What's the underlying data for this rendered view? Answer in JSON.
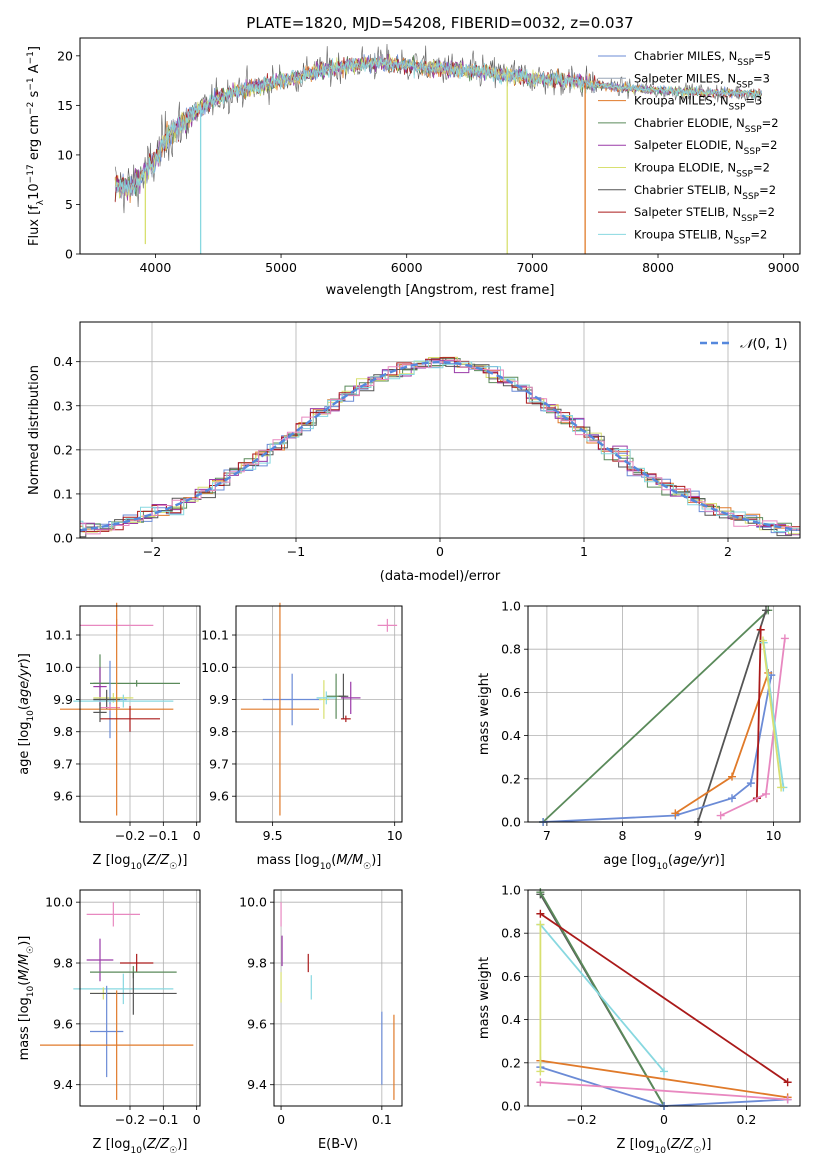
{
  "figure": {
    "title": "PLATE=1820, MJD=54208, FIBERID=0032, z=0.037"
  },
  "colors": {
    "MILES_Chabrier": "#6b8bd6",
    "MILES_Salpeter": "#9aa7b8",
    "MILES_Kroupa": "#e07a2a",
    "ELODIE_Chabrier": "#5a8a5a",
    "ELODIE_Salpeter": "#9a3aa8",
    "ELODIE_Kroupa": "#d8e070",
    "STELIB_Chabrier": "#555555",
    "STELIB_Salpeter": "#aa1a1a",
    "STELIB_Kroupa": "#88d8e0",
    "Salpeter_MILES_points": "#e888c0",
    "normal_curve": "#5588dd"
  },
  "chart_data": [
    {
      "id": "spectrum",
      "type": "line",
      "xlabel": "wavelength [Angstrom, rest frame]",
      "ylabel": "Flux [f_λ 10^-17 erg cm^-2 s^-1 A^-1]",
      "xlim": [
        3400,
        9130
      ],
      "ylim": [
        0,
        21.8
      ],
      "xticks": [
        4000,
        5000,
        6000,
        7000,
        8000,
        9000
      ],
      "yticks": [
        0,
        5,
        10,
        15,
        20
      ],
      "grid": false,
      "legend_position": "top-right",
      "legend": [
        {
          "label": "Chabrier MILES, N_SSP=5",
          "color": "#6b8bd6"
        },
        {
          "label": "Salpeter MILES, N_SSP=3",
          "color": "#9aa7b8"
        },
        {
          "label": "Kroupa MILES, N_SSP=3",
          "color": "#e07a2a"
        },
        {
          "label": "Chabrier ELODIE, N_SSP=2",
          "color": "#5a8a5a"
        },
        {
          "label": "Salpeter ELODIE, N_SSP=2",
          "color": "#9a3aa8"
        },
        {
          "label": "Kroupa ELODIE, N_SSP=2",
          "color": "#d8e070"
        },
        {
          "label": "Chabrier STELIB, N_SSP=2",
          "color": "#555555"
        },
        {
          "label": "Salpeter STELIB, N_SSP=2",
          "color": "#aa1a1a"
        },
        {
          "label": "Kroupa STELIB, N_SSP=2",
          "color": "#88d8e0"
        }
      ],
      "continuum": [
        [
          3680,
          7.0
        ],
        [
          3800,
          6.6
        ],
        [
          3900,
          8.0
        ],
        [
          4000,
          9.5
        ],
        [
          4100,
          12.0
        ],
        [
          4200,
          13.0
        ],
        [
          4300,
          14.2
        ],
        [
          4500,
          15.8
        ],
        [
          4700,
          16.6
        ],
        [
          5000,
          17.5
        ],
        [
          5200,
          18.2
        ],
        [
          5500,
          19.0
        ],
        [
          5800,
          19.3
        ],
        [
          6000,
          19.0
        ],
        [
          6300,
          18.7
        ],
        [
          6600,
          18.4
        ],
        [
          7000,
          17.8
        ],
        [
          7300,
          17.5
        ],
        [
          7600,
          16.9
        ],
        [
          8000,
          16.5
        ],
        [
          8400,
          16.3
        ],
        [
          8800,
          16.2
        ]
      ],
      "spikes": [
        {
          "x": 4360,
          "ymin": 0,
          "color": "#88d8e0"
        },
        {
          "x": 6800,
          "ymin": 0,
          "color": "#d8e070"
        },
        {
          "x": 7420,
          "ymin": 0,
          "color": "#e07a2a"
        },
        {
          "x": 3920,
          "ymin": 1.0,
          "color": "#d8e070"
        }
      ]
    },
    {
      "id": "residuals",
      "type": "histogram",
      "xlabel": "(data-model)/error",
      "ylabel": "Normed distribution",
      "xlim": [
        -2.5,
        2.5
      ],
      "ylim": [
        0,
        0.49
      ],
      "xticks": [
        -2,
        -1,
        0,
        1,
        2
      ],
      "yticks": [
        0.0,
        0.1,
        0.2,
        0.3,
        0.4
      ],
      "grid": true,
      "legend_position": "top-right",
      "legend": [
        {
          "label": "N(0,1)",
          "color": "#5588dd"
        }
      ],
      "bin_width": 0.1
    },
    {
      "id": "age_vs_Z",
      "type": "scatter",
      "xlabel": "Z [log10(Z/Z_sun)]",
      "ylabel": "age  [log10(age/yr)]",
      "xlim": [
        -0.35,
        0.01
      ],
      "ylim": [
        9.52,
        10.19
      ],
      "xticks": [
        -0.2,
        -0.1,
        0.0
      ],
      "yticks": [
        9.6,
        9.7,
        9.8,
        9.9,
        10.0,
        10.1
      ],
      "grid": true,
      "points": [
        {
          "x": -0.24,
          "y": 10.13,
          "xerr": 0.11,
          "yerr": 0.02,
          "color": "#e888c0"
        },
        {
          "x": -0.29,
          "y": 9.95,
          "xerr": 0.03,
          "yerr": 0.09,
          "color": "#5a8a5a"
        },
        {
          "x": -0.29,
          "y": 9.94,
          "xerr": 0.02,
          "yerr": 0.06,
          "color": "#9a3aa8"
        },
        {
          "x": -0.18,
          "y": 9.95,
          "xerr": 0.13,
          "yerr": 0.01,
          "color": "#5a8a5a"
        },
        {
          "x": -0.25,
          "y": 9.905,
          "xerr": 0.06,
          "yerr": 0.015,
          "color": "#d8e070"
        },
        {
          "x": -0.26,
          "y": 9.9,
          "xerr": 0.05,
          "yerr": 0.12,
          "color": "#6b8bd6"
        },
        {
          "x": -0.22,
          "y": 9.895,
          "xerr": 0.15,
          "yerr": 0.02,
          "color": "#88d8e0"
        },
        {
          "x": -0.27,
          "y": 9.9,
          "xerr": 0.04,
          "yerr": 0.03,
          "color": "#555555"
        },
        {
          "x": -0.26,
          "y": 9.875,
          "xerr": 0.03,
          "yerr": 0.01,
          "color": "#e888c0"
        },
        {
          "x": -0.24,
          "y": 9.87,
          "xerr": 0.17,
          "yerr": 0.33,
          "color": "#e07a2a"
        },
        {
          "x": -0.2,
          "y": 9.84,
          "xerr": 0.09,
          "yerr": 0.04,
          "color": "#aa1a1a"
        },
        {
          "x": -0.29,
          "y": 9.86,
          "xerr": 0.02,
          "yerr": 0.03,
          "color": "#555555"
        }
      ]
    },
    {
      "id": "age_vs_mass",
      "type": "scatter",
      "xlabel": "mass [log10(M/M_sun)]",
      "ylabel": "",
      "xlim": [
        9.35,
        10.03
      ],
      "ylim": [
        9.52,
        10.19
      ],
      "xticks": [
        9.5,
        10.0
      ],
      "yticks": [
        9.6,
        9.7,
        9.8,
        9.9,
        10.0,
        10.1
      ],
      "grid": true,
      "points": [
        {
          "x": 9.97,
          "y": 10.13,
          "xerr": 0.04,
          "yerr": 0.02,
          "color": "#e888c0"
        },
        {
          "x": 9.58,
          "y": 9.9,
          "xerr": 0.12,
          "yerr": 0.08,
          "color": "#6b8bd6"
        },
        {
          "x": 9.53,
          "y": 9.87,
          "xerr": 0.16,
          "yerr": 0.33,
          "color": "#e07a2a"
        },
        {
          "x": 9.76,
          "y": 9.91,
          "xerr": 0.04,
          "yerr": 0.07,
          "color": "#5a8a5a"
        },
        {
          "x": 9.79,
          "y": 9.91,
          "xerr": 0.02,
          "yerr": 0.07,
          "color": "#555555"
        },
        {
          "x": 9.82,
          "y": 9.905,
          "xerr": 0.04,
          "yerr": 0.05,
          "color": "#9a3aa8"
        },
        {
          "x": 9.71,
          "y": 9.9,
          "xerr": 0.02,
          "yerr": 0.06,
          "color": "#d8e070"
        },
        {
          "x": 9.8,
          "y": 9.84,
          "xerr": 0.02,
          "yerr": 0.01,
          "color": "#aa1a1a"
        },
        {
          "x": 9.72,
          "y": 9.905,
          "xerr": 0.04,
          "yerr": 0.02,
          "color": "#88d8e0"
        }
      ]
    },
    {
      "id": "weight_vs_age",
      "type": "line",
      "xlabel": "age  [log10(age/yr)]",
      "ylabel": "mass weight",
      "xlim": [
        6.75,
        10.35
      ],
      "ylim": [
        0,
        1.0
      ],
      "xticks": [
        7,
        8,
        9,
        10
      ],
      "yticks": [
        0.0,
        0.2,
        0.4,
        0.6,
        0.8,
        1.0
      ],
      "grid": true,
      "series": [
        {
          "color": "#5a8a5a",
          "points": [
            [
              6.95,
              0.0
            ],
            [
              9.93,
              0.98
            ]
          ]
        },
        {
          "color": "#555555",
          "points": [
            [
              9.0,
              0.0
            ],
            [
              9.9,
              0.98
            ]
          ]
        },
        {
          "color": "#6b8bd6",
          "points": [
            [
              6.95,
              0.0
            ],
            [
              8.7,
              0.03
            ],
            [
              9.45,
              0.11
            ],
            [
              9.7,
              0.18
            ],
            [
              9.97,
              0.68
            ]
          ]
        },
        {
          "color": "#e07a2a",
          "points": [
            [
              8.7,
              0.04
            ],
            [
              9.45,
              0.21
            ],
            [
              9.93,
              0.69
            ]
          ]
        },
        {
          "color": "#aa1a1a",
          "points": [
            [
              9.78,
              0.11
            ],
            [
              9.83,
              0.89
            ]
          ]
        },
        {
          "color": "#e888c0",
          "points": [
            [
              9.3,
              0.03
            ],
            [
              9.9,
              0.13
            ],
            [
              10.15,
              0.85
            ]
          ]
        },
        {
          "color": "#88d8e0",
          "points": [
            [
              9.87,
              0.83
            ],
            [
              10.13,
              0.16
            ]
          ]
        },
        {
          "color": "#d8e070",
          "points": [
            [
              9.86,
              0.84
            ],
            [
              10.1,
              0.16
            ]
          ]
        }
      ]
    },
    {
      "id": "mass_vs_Z",
      "type": "scatter",
      "xlabel": "Z [log10(Z/Z_sun)]",
      "ylabel": "mass [log10(M/M_sun)]",
      "xlim": [
        -0.35,
        0.01
      ],
      "ylim": [
        9.33,
        10.04
      ],
      "xticks": [
        -0.2,
        -0.1,
        0.0
      ],
      "yticks": [
        9.4,
        9.6,
        9.8,
        10.0
      ],
      "grid": true,
      "points": [
        {
          "x": -0.25,
          "y": 9.96,
          "xerr": 0.08,
          "yerr": 0.04,
          "color": "#e888c0"
        },
        {
          "x": -0.29,
          "y": 9.81,
          "xerr": 0.04,
          "yerr": 0.07,
          "color": "#9a3aa8"
        },
        {
          "x": -0.18,
          "y": 9.8,
          "xerr": 0.05,
          "yerr": 0.03,
          "color": "#aa1a1a"
        },
        {
          "x": -0.19,
          "y": 9.77,
          "xerr": 0.13,
          "yerr": 0.02,
          "color": "#5a8a5a"
        },
        {
          "x": -0.22,
          "y": 9.715,
          "xerr": 0.15,
          "yerr": 0.05,
          "color": "#88d8e0"
        },
        {
          "x": -0.28,
          "y": 9.7,
          "xerr": 0.04,
          "yerr": 0.02,
          "color": "#d8e070"
        },
        {
          "x": -0.19,
          "y": 9.7,
          "xerr": 0.13,
          "yerr": 0.07,
          "color": "#555555"
        },
        {
          "x": -0.27,
          "y": 9.575,
          "xerr": 0.05,
          "yerr": 0.15,
          "color": "#6b8bd6"
        },
        {
          "x": -0.24,
          "y": 9.53,
          "xerr": 0.23,
          "yerr": 0.18,
          "color": "#e07a2a"
        }
      ]
    },
    {
      "id": "mass_vs_ebv",
      "type": "scatter",
      "xlabel": "E(B-V)",
      "ylabel": "",
      "xlim": [
        -0.007,
        0.12
      ],
      "ylim": [
        9.33,
        10.04
      ],
      "xticks": [
        0.0,
        0.1
      ],
      "yticks": [
        9.4,
        9.6,
        9.8,
        10.0
      ],
      "grid": true,
      "points": [
        {
          "x": 0.0,
          "y": 9.96,
          "xerr": 0,
          "yerr": 0.04,
          "color": "#e888c0"
        },
        {
          "x": 0.001,
          "y": 9.84,
          "xerr": 0,
          "yerr": 0.05,
          "color": "#9a3aa8"
        },
        {
          "x": 0.0,
          "y": 9.72,
          "xerr": 0,
          "yerr": 0.05,
          "color": "#d8e070"
        },
        {
          "x": 0.027,
          "y": 9.8,
          "xerr": 0,
          "yerr": 0.03,
          "color": "#aa1a1a"
        },
        {
          "x": 0.03,
          "y": 9.72,
          "xerr": 0,
          "yerr": 0.04,
          "color": "#88d8e0"
        },
        {
          "x": 0.1,
          "y": 9.52,
          "xerr": 0,
          "yerr": 0.12,
          "color": "#6b8bd6"
        },
        {
          "x": 0.112,
          "y": 9.49,
          "xerr": 0,
          "yerr": 0.14,
          "color": "#e07a2a"
        }
      ]
    },
    {
      "id": "weight_vs_Z",
      "type": "line",
      "xlabel": "Z [log10(Z/Z_sun)]",
      "ylabel": "mass weight",
      "xlim": [
        -0.33,
        0.33
      ],
      "ylim": [
        0,
        1.0
      ],
      "xticks": [
        -0.2,
        0.0,
        0.2
      ],
      "yticks": [
        0.0,
        0.2,
        0.4,
        0.6,
        0.8,
        1.0
      ],
      "grid": true,
      "series": [
        {
          "color": "#555555",
          "points": [
            [
              -0.3,
              0.98
            ],
            [
              0.0,
              0.0
            ]
          ]
        },
        {
          "color": "#5a8a5a",
          "points": [
            [
              -0.3,
              0.99
            ],
            [
              0.0,
              0.0
            ]
          ]
        },
        {
          "color": "#aa1a1a",
          "points": [
            [
              -0.3,
              0.89
            ],
            [
              0.3,
              0.11
            ]
          ]
        },
        {
          "color": "#88d8e0",
          "points": [
            [
              -0.3,
              0.84
            ],
            [
              0.0,
              0.16
            ]
          ]
        },
        {
          "color": "#e07a2a",
          "points": [
            [
              -0.3,
              0.21
            ],
            [
              0.3,
              0.04
            ]
          ]
        },
        {
          "color": "#6b8bd6",
          "points": [
            [
              -0.3,
              0.18
            ],
            [
              0.0,
              0.0
            ],
            [
              0.3,
              0.03
            ]
          ]
        },
        {
          "color": "#e888c0",
          "points": [
            [
              -0.3,
              0.11
            ],
            [
              0.3,
              0.03
            ]
          ]
        },
        {
          "color": "#d8e070",
          "points": [
            [
              -0.3,
              0.84
            ],
            [
              -0.3,
              0.16
            ]
          ]
        }
      ]
    }
  ]
}
